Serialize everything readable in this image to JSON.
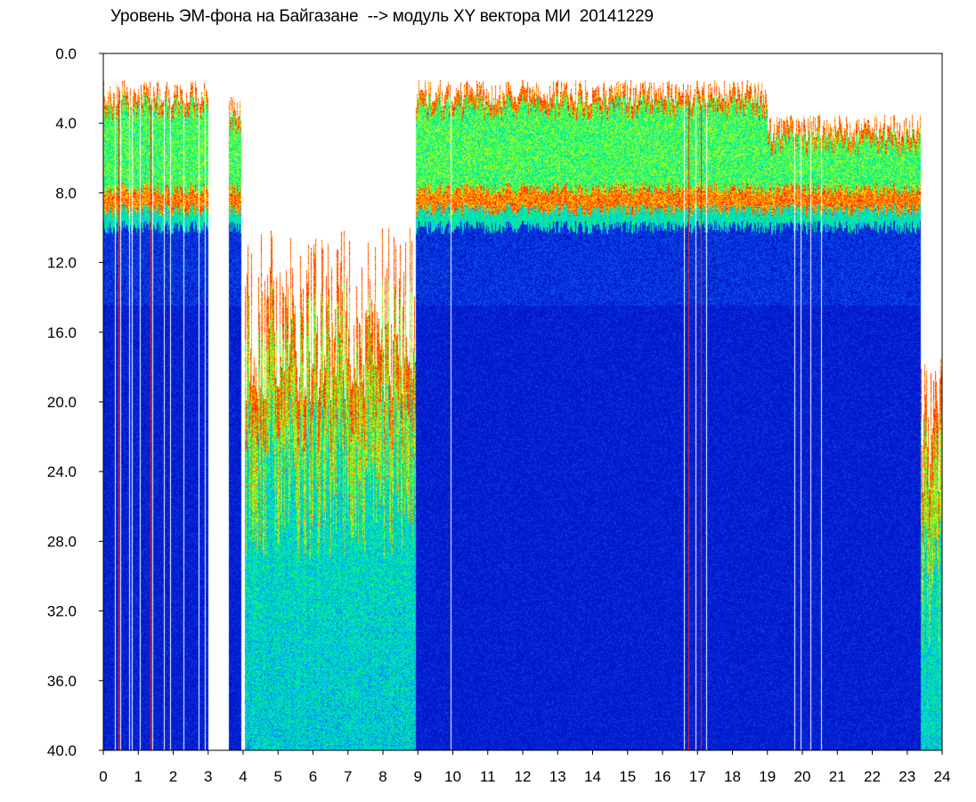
{
  "chart_data": {
    "type": "heatmap",
    "title": "Уровень ЭМ-фона на Байгазане  --> модуль XY вектора МИ  20141229",
    "xlabel": "",
    "ylabel": "",
    "xlim": [
      0,
      24
    ],
    "ylim": [
      0,
      40
    ],
    "y_inverted": true,
    "x_ticks": [
      "0",
      "1",
      "2",
      "3",
      "4",
      "5",
      "6",
      "7",
      "8",
      "9",
      "10",
      "11",
      "12",
      "13",
      "14",
      "15",
      "16",
      "17",
      "18",
      "19",
      "20",
      "21",
      "22",
      "23",
      "24"
    ],
    "y_ticks": [
      "0.0",
      "4.0",
      "8.0",
      "12.0",
      "16.0",
      "20.0",
      "24.0",
      "28.0",
      "32.0",
      "36.0",
      "40.0"
    ],
    "colormap": [
      "#0008c8",
      "#0a3ce6",
      "#00c8ff",
      "#00ff64",
      "#ffff00",
      "#ff0000"
    ],
    "background": "#0010c0",
    "grid": false,
    "gaps_hours": [
      [
        3.0,
        3.6
      ],
      [
        4.0,
        4.05
      ]
    ],
    "white_lines_hours": [
      0.35,
      0.5,
      0.75,
      0.82,
      1.05,
      1.3,
      1.42,
      1.75,
      1.92,
      2.3,
      2.42,
      2.75,
      2.92,
      3.72,
      3.95,
      9.95,
      16.62,
      16.95,
      17.25,
      19.78,
      19.95,
      20.25,
      20.55
    ],
    "red_lines_hours": [
      0.45,
      1.37,
      2.6,
      16.75,
      17.1
    ],
    "regions": [
      {
        "hours": [
          0.0,
          3.0
        ],
        "upper_edge": 1.5,
        "band": 8.0,
        "profile": "morning"
      },
      {
        "hours": [
          3.6,
          3.95
        ],
        "upper_edge": 2.4,
        "band": 8.0,
        "profile": "morning"
      },
      {
        "hours": [
          4.05,
          8.95
        ],
        "upper_edge": 10.0,
        "band": 18.0,
        "profile": "noisy"
      },
      {
        "hours": [
          8.95,
          16.7
        ],
        "upper_edge": 1.5,
        "band": 8.0,
        "profile": "day"
      },
      {
        "hours": [
          16.7,
          19.0
        ],
        "upper_edge": 1.5,
        "band": 8.0,
        "profile": "day"
      },
      {
        "hours": [
          19.0,
          23.4
        ],
        "upper_edge": 3.5,
        "band": 8.0,
        "profile": "day"
      },
      {
        "hours": [
          23.4,
          24.0
        ],
        "upper_edge": 16.0,
        "band": 20.0,
        "profile": "noisy"
      }
    ]
  }
}
